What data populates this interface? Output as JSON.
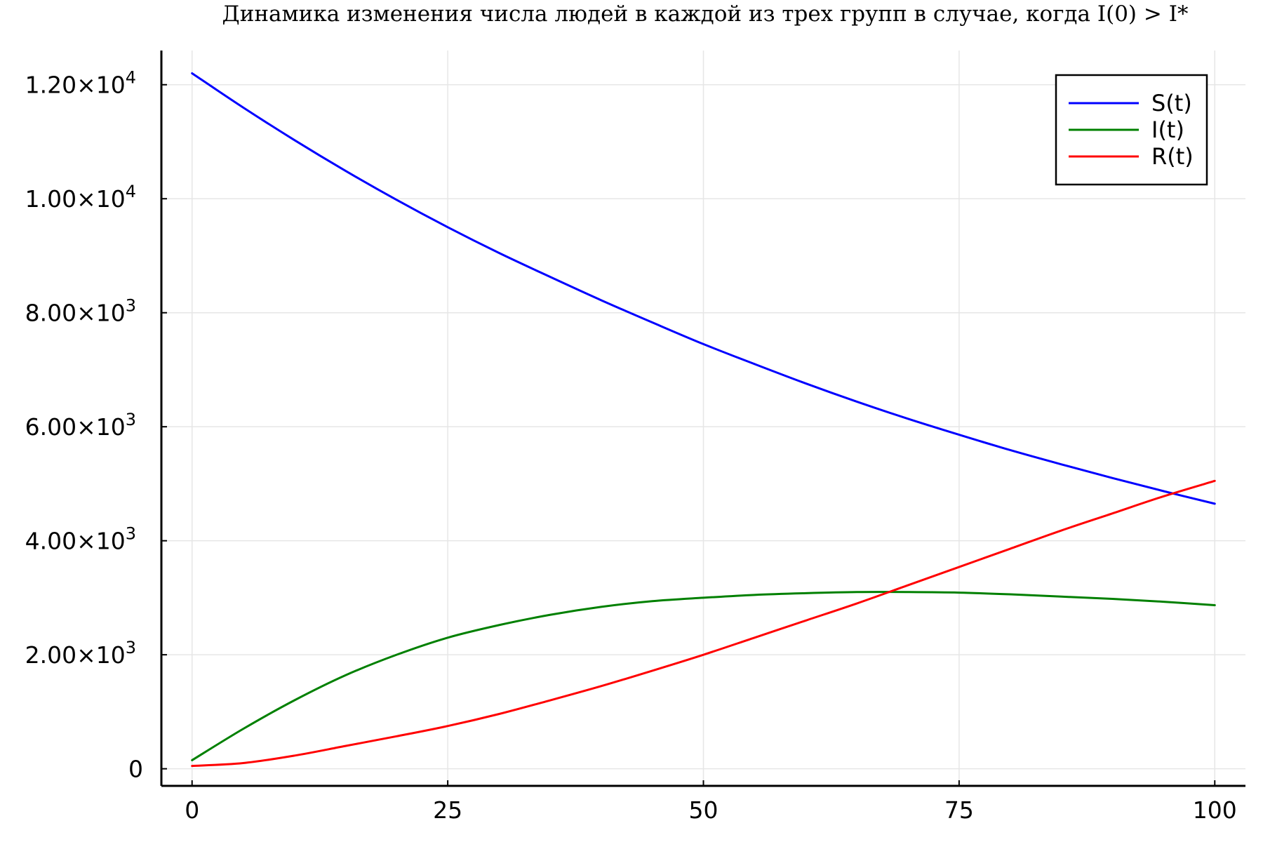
{
  "chart_data": {
    "type": "line",
    "title": "Динамика изменения числа людей в каждой из трех групп в случае, когда I(0) > I*",
    "xlabel": "",
    "ylabel": "",
    "xlim": [
      -3,
      103
    ],
    "ylim": [
      -300,
      12600
    ],
    "grid": true,
    "legend_position": "top-right",
    "x_ticks": [
      {
        "value": 0,
        "label": "0"
      },
      {
        "value": 25,
        "label": "25"
      },
      {
        "value": 50,
        "label": "50"
      },
      {
        "value": 75,
        "label": "75"
      },
      {
        "value": 100,
        "label": "100"
      }
    ],
    "y_ticks": [
      {
        "value": 0,
        "mantissa": "0",
        "exponent": ""
      },
      {
        "value": 2000,
        "mantissa": "2.00×10",
        "exponent": "3"
      },
      {
        "value": 4000,
        "mantissa": "4.00×10",
        "exponent": "3"
      },
      {
        "value": 6000,
        "mantissa": "6.00×10",
        "exponent": "3"
      },
      {
        "value": 8000,
        "mantissa": "8.00×10",
        "exponent": "3"
      },
      {
        "value": 10000,
        "mantissa": "1.00×10",
        "exponent": "4"
      },
      {
        "value": 12000,
        "mantissa": "1.20×10",
        "exponent": "4"
      }
    ],
    "x": [
      0,
      5,
      10,
      15,
      20,
      25,
      30,
      35,
      40,
      45,
      50,
      55,
      60,
      65,
      70,
      75,
      80,
      85,
      90,
      95,
      100
    ],
    "series": [
      {
        "name": "S(t)",
        "color": "#0000ff",
        "values": [
          12200,
          11600,
          11030,
          10490,
          9980,
          9500,
          9050,
          8630,
          8220,
          7830,
          7450,
          7100,
          6760,
          6440,
          6140,
          5860,
          5590,
          5340,
          5100,
          4870,
          4650
        ]
      },
      {
        "name": "I(t)",
        "color": "#008000",
        "values": [
          150,
          700,
          1200,
          1640,
          2000,
          2300,
          2520,
          2700,
          2840,
          2940,
          3000,
          3050,
          3080,
          3100,
          3100,
          3090,
          3060,
          3020,
          2980,
          2930,
          2870
        ]
      },
      {
        "name": "R(t)",
        "color": "#ff0000",
        "values": [
          50,
          100,
          230,
          400,
          570,
          750,
          960,
          1200,
          1450,
          1720,
          2000,
          2300,
          2600,
          2900,
          3220,
          3540,
          3860,
          4180,
          4480,
          4780,
          5050
        ]
      }
    ]
  }
}
